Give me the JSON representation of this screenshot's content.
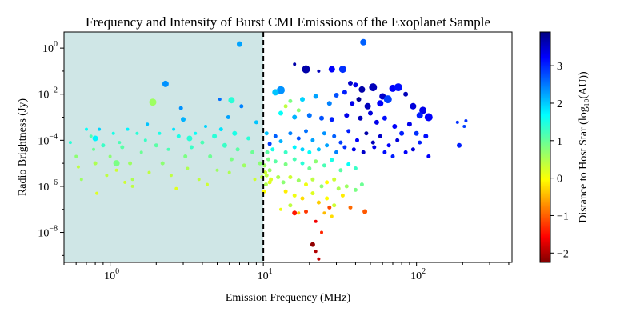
{
  "chart_data": {
    "type": "scatter",
    "title": "Frequency and Intensity of Burst CMI Emissions of the Exoplanet Sample",
    "xlabel": "Emission Frequency (MHz)",
    "ylabel": "Radio Brightness (Jy)",
    "colorbar_label": "Distance to Host Star (log₁₀(AU))",
    "x_scale": "log",
    "y_scale": "log",
    "xlim": [
      0.5,
      420
    ],
    "ylim": [
      5e-10,
      5
    ],
    "colorbar_range": [
      -2.25,
      3.9
    ],
    "colorbar_ticks": [
      3,
      2,
      1,
      0,
      -1,
      -2
    ],
    "colormap": "jet",
    "shaded_region": {
      "x_from": 0.5,
      "x_to": 10,
      "color": "#cfe6e6"
    },
    "threshold_line": {
      "x": 10,
      "style": "dashed",
      "color": "#000000"
    },
    "x_ticks": [
      {
        "value": 1,
        "base": "10",
        "exp": "0"
      },
      {
        "value": 10,
        "base": "10",
        "exp": "1"
      },
      {
        "value": 100,
        "base": "10",
        "exp": "2"
      }
    ],
    "y_ticks": [
      {
        "value": 1,
        "base": "10",
        "exp": "0"
      },
      {
        "value": 0.01,
        "base": "10",
        "exp": "−2"
      },
      {
        "value": 0.0001,
        "base": "10",
        "exp": "−4"
      },
      {
        "value": 1e-06,
        "base": "10",
        "exp": "−6"
      },
      {
        "value": 1e-08,
        "base": "10",
        "exp": "−8"
      }
    ],
    "points": [
      [
        45,
        1.8,
        -0.9,
        4
      ],
      [
        7.0,
        1.5,
        -0.5,
        3.5
      ],
      [
        2.3,
        0.028,
        -0.6,
        4
      ],
      [
        1.9,
        0.0045,
        1.0,
        4.5
      ],
      [
        6.2,
        0.0055,
        0.3,
        4
      ],
      [
        13,
        0.015,
        -0.6,
        5
      ],
      [
        12,
        0.012,
        -0.3,
        4
      ],
      [
        16,
        0.2,
        -2.0,
        2
      ],
      [
        19,
        0.12,
        -2.0,
        5
      ],
      [
        23,
        0.1,
        -1.9,
        2
      ],
      [
        28,
        0.12,
        -1.5,
        4
      ],
      [
        33,
        0.12,
        -1.2,
        4.5
      ],
      [
        37,
        0.03,
        -1.8,
        3
      ],
      [
        40,
        0.025,
        -1.6,
        3
      ],
      [
        44,
        0.016,
        -2.0,
        4
      ],
      [
        52,
        0.02,
        -1.9,
        5
      ],
      [
        60,
        0.008,
        -1.8,
        4
      ],
      [
        70,
        0.018,
        -1.5,
        4.5
      ],
      [
        76,
        0.02,
        -1.4,
        5
      ],
      [
        85,
        0.01,
        -1.9,
        3
      ],
      [
        95,
        0.003,
        -1.7,
        4
      ],
      [
        110,
        0.002,
        -1.6,
        4.5
      ],
      [
        120,
        0.001,
        -1.5,
        5
      ],
      [
        105,
        0.0012,
        -1.3,
        4
      ],
      [
        65,
        0.006,
        -1.1,
        5
      ],
      [
        58,
        0.004,
        -1.5,
        4
      ],
      [
        48,
        0.003,
        -1.9,
        4
      ],
      [
        42,
        0.006,
        -2.1,
        3
      ],
      [
        38,
        0.004,
        -1.6,
        3
      ],
      [
        34,
        0.012,
        -1.3,
        3
      ],
      [
        30,
        0.009,
        -1.0,
        3
      ],
      [
        27,
        0.004,
        -0.7,
        3
      ],
      [
        22,
        0.008,
        -0.5,
        3
      ],
      [
        18,
        0.006,
        -0.2,
        3
      ],
      [
        15,
        0.005,
        0.8,
        2.5
      ],
      [
        14,
        0.003,
        1.2,
        2.5
      ],
      [
        17,
        0.002,
        0.9,
        2.5
      ],
      [
        13,
        0.0015,
        0.1,
        3
      ],
      [
        16,
        0.001,
        -0.4,
        3
      ],
      [
        20,
        0.0012,
        -0.8,
        3
      ],
      [
        24,
        0.0009,
        -1.0,
        3
      ],
      [
        28,
        0.0008,
        -1.3,
        3
      ],
      [
        35,
        0.0012,
        -1.6,
        3
      ],
      [
        43,
        0.0009,
        -1.9,
        3
      ],
      [
        50,
        0.0015,
        -1.7,
        3
      ],
      [
        55,
        0.0006,
        -1.6,
        3
      ],
      [
        62,
        0.0009,
        -1.4,
        3
      ],
      [
        72,
        0.0004,
        -1.5,
        3
      ],
      [
        80,
        0.0002,
        -1.3,
        3
      ],
      [
        90,
        0.0005,
        -1.6,
        3
      ],
      [
        100,
        0.0002,
        -1.2,
        3
      ],
      [
        115,
        0.00015,
        -1.4,
        3
      ],
      [
        75,
        0.0001,
        -1.7,
        2.5
      ],
      [
        66,
        6e-05,
        -1.5,
        2.5
      ],
      [
        58,
        0.00015,
        -1.8,
        2.5
      ],
      [
        52,
        8e-05,
        -1.9,
        2.5
      ],
      [
        47,
        0.0002,
        -2.0,
        2.5
      ],
      [
        41,
        0.0001,
        -1.5,
        2.5
      ],
      [
        36,
        0.00025,
        -1.3,
        2.5
      ],
      [
        32,
        8e-05,
        -1.1,
        2.5
      ],
      [
        29,
        0.00015,
        -0.9,
        2.5
      ],
      [
        25,
        0.0002,
        -0.6,
        2.5
      ],
      [
        21,
        0.0001,
        -0.5,
        2.5
      ],
      [
        19,
        0.00025,
        -0.8,
        2.5
      ],
      [
        17,
        0.00012,
        -1.0,
        2.5
      ],
      [
        15,
        0.0002,
        -0.7,
        2.5
      ],
      [
        13,
        9e-05,
        -0.4,
        2.5
      ],
      [
        12,
        0.00015,
        -0.9,
        2.5
      ],
      [
        11,
        7e-05,
        -1.1,
        2.5
      ],
      [
        10.5,
        0.0002,
        -0.3,
        2.5
      ],
      [
        11.5,
        4e-05,
        0.2,
        2.5
      ],
      [
        14,
        3e-05,
        0.4,
        2.5
      ],
      [
        16,
        5e-05,
        0.0,
        2.5
      ],
      [
        18,
        4e-05,
        -0.2,
        2.5
      ],
      [
        20,
        3e-05,
        0.1,
        2.5
      ],
      [
        23,
        4e-05,
        -0.3,
        2.5
      ],
      [
        26,
        6e-05,
        -0.5,
        2.5
      ],
      [
        30,
        3e-05,
        -0.7,
        2.5
      ],
      [
        34,
        5e-05,
        -1.2,
        2.5
      ],
      [
        39,
        4e-05,
        -1.6,
        2.5
      ],
      [
        45,
        3e-05,
        -1.8,
        2.5
      ],
      [
        53,
        5e-05,
        -1.6,
        2.5
      ],
      [
        62,
        3e-05,
        -1.4,
        2.5
      ],
      [
        70,
        2e-05,
        -1.3,
        2.5
      ],
      [
        85,
        3e-05,
        -1.5,
        2.5
      ],
      [
        95,
        4e-05,
        -1.7,
        2.5
      ],
      [
        120,
        2e-05,
        -1.5,
        2.5
      ],
      [
        105,
        8e-05,
        -1.3,
        2.5
      ],
      [
        190,
        6e-05,
        -1.3,
        3
      ],
      [
        185,
        0.0006,
        -1.2,
        2
      ],
      [
        205,
        0.0004,
        -1.1,
        2
      ],
      [
        210,
        0.0007,
        -1.2,
        2
      ],
      [
        12,
        1.2e-05,
        0.6,
        2.5
      ],
      [
        14,
        9e-06,
        0.8,
        2.5
      ],
      [
        16,
        1.5e-05,
        0.5,
        2.5
      ],
      [
        18,
        1e-05,
        0.3,
        2.5
      ],
      [
        20,
        6e-06,
        0.7,
        2.5
      ],
      [
        22,
        1.2e-05,
        0.9,
        2.5
      ],
      [
        25,
        8e-06,
        0.5,
        2.5
      ],
      [
        28,
        1.4e-05,
        0.2,
        2.5
      ],
      [
        32,
        5e-06,
        0.6,
        2.5
      ],
      [
        36,
        9e-06,
        0.1,
        2.5
      ],
      [
        40,
        6e-06,
        0.4,
        2.5
      ],
      [
        11,
        5e-06,
        1.0,
        2.5
      ],
      [
        10.5,
        3e-06,
        1.2,
        2.5
      ],
      [
        11,
        1.5e-06,
        1.4,
        2.5
      ],
      [
        12.5,
        2.5e-06,
        1.1,
        2.5
      ],
      [
        13.5,
        1.5e-06,
        0.9,
        2.5
      ],
      [
        15,
        2.5e-06,
        1.3,
        2.5
      ],
      [
        17,
        1.8e-06,
        1.0,
        2.5
      ],
      [
        19,
        1.2e-06,
        1.5,
        2.5
      ],
      [
        21,
        2e-06,
        1.2,
        2.5
      ],
      [
        24,
        1e-06,
        0.9,
        2.5
      ],
      [
        26,
        1.5e-06,
        1.6,
        2.5
      ],
      [
        29,
        2e-06,
        1.3,
        2.5
      ],
      [
        31,
        8e-07,
        1.1,
        2.5
      ],
      [
        35,
        1e-06,
        1.0,
        2.5
      ],
      [
        40,
        7e-07,
        0.8,
        2.5
      ],
      [
        44,
        1.2e-06,
        0.7,
        2.5
      ],
      [
        14,
        6e-07,
        1.7,
        2.5
      ],
      [
        16,
        4e-07,
        1.5,
        2.5
      ],
      [
        18,
        3e-07,
        1.8,
        2.5
      ],
      [
        21,
        5e-07,
        1.4,
        2.5
      ],
      [
        23,
        2e-07,
        1.9,
        2.5
      ],
      [
        26,
        3e-07,
        1.6,
        2.5
      ],
      [
        29,
        1.5e-07,
        1.3,
        2.5
      ],
      [
        33,
        4e-07,
        1.7,
        2.5
      ],
      [
        15,
        1.5e-07,
        1.2,
        2.5
      ],
      [
        13,
        1e-07,
        1.5,
        2
      ],
      [
        17,
        7e-08,
        1.9,
        2
      ],
      [
        25,
        7e-08,
        2.0,
        2
      ],
      [
        28,
        5e-08,
        1.8,
        2
      ],
      [
        16,
        7e-08,
        3.0,
        3
      ],
      [
        19,
        8e-08,
        2.8,
        2.5
      ],
      [
        22,
        3e-08,
        3.2,
        2
      ],
      [
        27,
        1.2e-07,
        2.7,
        2.5
      ],
      [
        37,
        1.2e-07,
        2.5,
        2.5
      ],
      [
        46,
        8e-08,
        2.6,
        3
      ],
      [
        24,
        1e-08,
        2.9,
        2
      ],
      [
        21,
        3e-09,
        3.8,
        3
      ],
      [
        22,
        1.5e-09,
        3.6,
        2
      ],
      [
        23,
        7e-10,
        3.5,
        2
      ],
      [
        10.2,
        8e-06,
        1.0,
        2.5
      ],
      [
        10.3,
        4e-06,
        1.3,
        2.5
      ],
      [
        10.4,
        1.2e-06,
        1.1,
        2.5
      ],
      [
        10.8,
        1.5e-05,
        0.8,
        2.5
      ],
      [
        10.6,
        3e-05,
        0.6,
        2.5
      ],
      [
        11.2,
        2e-06,
        1.4,
        2.5
      ],
      [
        10.1,
        6e-07,
        1.6,
        2.5
      ],
      [
        0.55,
        8e-05,
        0.3,
        2
      ],
      [
        0.6,
        2e-05,
        0.9,
        2
      ],
      [
        0.62,
        7e-06,
        1.2,
        2
      ],
      [
        0.65,
        2e-06,
        1.0,
        2
      ],
      [
        0.7,
        0.0003,
        0.1,
        2
      ],
      [
        0.75,
        0.00015,
        0.5,
        2
      ],
      [
        0.78,
        4e-05,
        0.7,
        2
      ],
      [
        0.8,
        1e-05,
        1.1,
        2.5
      ],
      [
        0.82,
        5e-07,
        1.4,
        2
      ],
      [
        0.85,
        0.0003,
        -0.2,
        2
      ],
      [
        0.9,
        6e-05,
        0.4,
        2.5
      ],
      [
        0.95,
        3e-06,
        1.2,
        2
      ],
      [
        1.0,
        2e-05,
        0.9,
        2
      ],
      [
        1.05,
        0.0002,
        0.2,
        2
      ],
      [
        1.1,
        5e-06,
        1.3,
        2
      ],
      [
        1.15,
        8e-05,
        0.5,
        2
      ],
      [
        1.2,
        5e-05,
        0.6,
        2.5
      ],
      [
        1.3,
        0.0003,
        0.0,
        2
      ],
      [
        1.35,
        1e-05,
        1.0,
        2.5
      ],
      [
        1.4,
        2e-06,
        1.1,
        2
      ],
      [
        1.5,
        0.0002,
        0.3,
        2
      ],
      [
        1.6,
        3e-05,
        0.7,
        2
      ],
      [
        1.7,
        0.0001,
        0.4,
        2
      ],
      [
        1.75,
        0.0005,
        -0.3,
        2
      ],
      [
        1.8,
        4e-06,
        1.2,
        2
      ],
      [
        2.0,
        6e-05,
        0.6,
        2.5
      ],
      [
        2.1,
        0.0002,
        0.2,
        2
      ],
      [
        2.2,
        1e-05,
        0.9,
        2.5
      ],
      [
        2.4,
        4e-05,
        0.5,
        2
      ],
      [
        2.5,
        3e-06,
        1.2,
        2
      ],
      [
        2.6,
        0.0003,
        -0.1,
        2
      ],
      [
        2.8,
        0.00015,
        0.2,
        2.5
      ],
      [
        3.0,
        0.0008,
        -0.4,
        3
      ],
      [
        3.1,
        2e-05,
        0.8,
        2.5
      ],
      [
        3.2,
        6e-06,
        1.1,
        2
      ],
      [
        3.4,
        5e-05,
        0.4,
        2.5
      ],
      [
        3.6,
        0.0002,
        0.1,
        2
      ],
      [
        3.8,
        2e-06,
        1.2,
        2
      ],
      [
        4.0,
        8e-05,
        0.5,
        2.5
      ],
      [
        4.2,
        0.0004,
        -0.2,
        2
      ],
      [
        4.5,
        2e-05,
        0.7,
        2.5
      ],
      [
        4.8,
        0.00015,
        0.3,
        3
      ],
      [
        5.0,
        5e-06,
        1.0,
        2
      ],
      [
        5.3,
        0.0003,
        -0.1,
        2.5
      ],
      [
        5.6,
        6e-05,
        0.4,
        3
      ],
      [
        5.9,
        0.001,
        -0.5,
        2.5
      ],
      [
        6.2,
        1.5e-05,
        0.8,
        2.5
      ],
      [
        6.5,
        0.0002,
        0.2,
        3
      ],
      [
        6.8,
        4e-05,
        0.6,
        2.5
      ],
      [
        7.2,
        0.003,
        -0.7,
        2.5
      ],
      [
        7.5,
        8e-06,
        1.0,
        2.5
      ],
      [
        8.0,
        0.00012,
        0.3,
        2.5
      ],
      [
        8.5,
        3e-05,
        0.7,
        2.5
      ],
      [
        9.0,
        0.0006,
        -0.3,
        2.5
      ],
      [
        9.5,
        1e-05,
        0.9,
        2.5
      ],
      [
        9.8,
        2.5e-06,
        1.2,
        2.5
      ],
      [
        1.25,
        1.5e-06,
        1.3,
        2
      ],
      [
        2.7,
        8e-07,
        1.4,
        2
      ],
      [
        4.3,
        1.2e-06,
        1.3,
        2
      ],
      [
        6.0,
        4e-06,
        1.1,
        2
      ],
      [
        8.8,
        2e-06,
        1.3,
        2
      ],
      [
        3.3,
        0.00012,
        0.3,
        3.5
      ],
      [
        2.9,
        0.0025,
        -0.6,
        2.5
      ],
      [
        5.2,
        0.006,
        -0.8,
        2
      ],
      [
        0.8,
        0.00012,
        0.0,
        3.5
      ],
      [
        1.1,
        1e-05,
        0.8,
        4
      ],
      [
        1.4,
        1e-06,
        1.2,
        2
      ]
    ]
  }
}
